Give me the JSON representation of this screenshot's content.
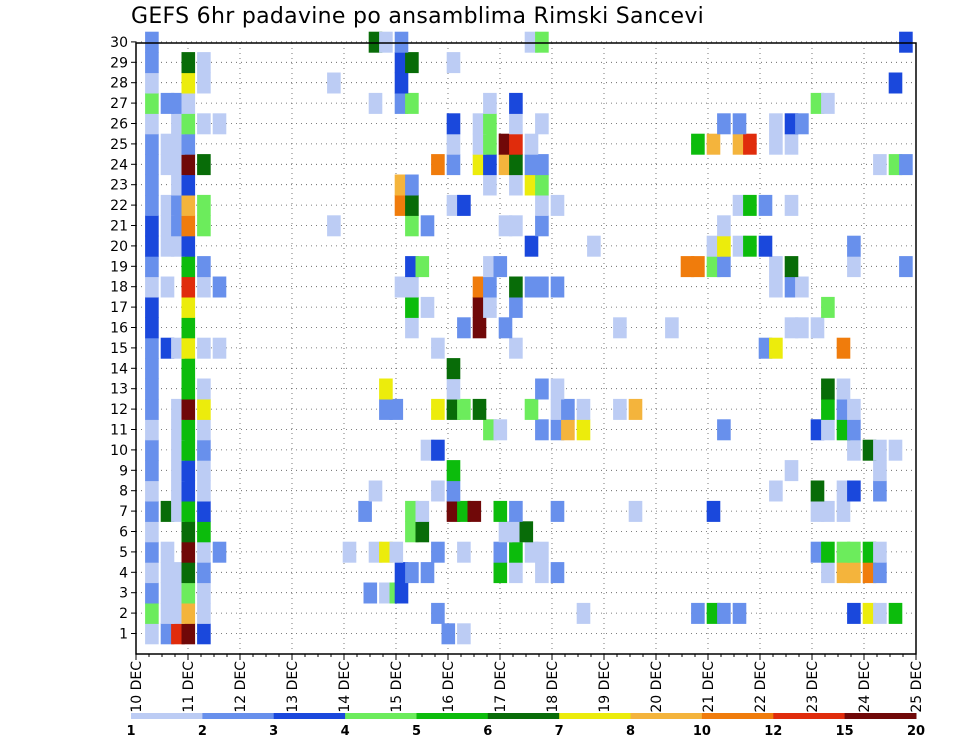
{
  "title": "GEFS 6hr padavine po ansamblima Rimski Sancevi",
  "chart_data": {
    "type": "heatmap",
    "title": "GEFS 6hr padavine po ansamblima Rimski Sancevi",
    "x_tick_labels": [
      "10 DEC",
      "11 DEC",
      "12 DEC",
      "13 DEC",
      "14 DEC",
      "15 DEC",
      "16 DEC",
      "17 DEC",
      "18 DEC",
      "19 DEC",
      "20 DEC",
      "21 DEC",
      "22 DEC",
      "23 DEC",
      "24 DEC",
      "25 DEC"
    ],
    "y_tick_labels": [
      "1",
      "2",
      "3",
      "4",
      "5",
      "6",
      "7",
      "8",
      "9",
      "10",
      "11",
      "12",
      "13",
      "14",
      "15",
      "16",
      "17",
      "18",
      "19",
      "20",
      "21",
      "22",
      "23",
      "24",
      "25",
      "26",
      "27",
      "28",
      "29",
      "30"
    ],
    "x_range": [
      "10 DEC 00Z",
      "25 DEC 00Z"
    ],
    "x_step_hours": 6,
    "y_range": [
      1,
      30
    ],
    "grid": "dotted",
    "colorbar": {
      "position": "bottom",
      "colors": [
        "#bcccf4",
        "#6890ec",
        "#1a48dc",
        "#6cec5c",
        "#0cbc0c",
        "#086c08",
        "#ecec0c",
        "#f4b43c",
        "#f07c0c",
        "#e02c0c",
        "#700808"
      ],
      "labels": [
        "1",
        "2",
        "3",
        "4",
        "5",
        "6",
        "7",
        "8",
        "10",
        "12",
        "15",
        "20"
      ]
    },
    "cells": {
      "1": [
        [
          0.3,
          0
        ],
        [
          0.6,
          1
        ],
        [
          0.8,
          9
        ],
        [
          1.0,
          10
        ],
        [
          1.3,
          2
        ],
        [
          6.0,
          1
        ],
        [
          6.3,
          0
        ]
      ],
      "2": [
        [
          0.3,
          3
        ],
        [
          0.6,
          0
        ],
        [
          0.8,
          0
        ],
        [
          1.0,
          7
        ],
        [
          1.3,
          0
        ],
        [
          5.8,
          1
        ],
        [
          8.6,
          0
        ],
        [
          10.8,
          1
        ],
        [
          11.1,
          4
        ],
        [
          11.3,
          1
        ],
        [
          11.6,
          1
        ],
        [
          13.8,
          2
        ],
        [
          14.1,
          6
        ],
        [
          14.3,
          0
        ],
        [
          14.6,
          4
        ]
      ],
      "3": [
        [
          0.3,
          1
        ],
        [
          0.6,
          0
        ],
        [
          0.8,
          0
        ],
        [
          1.0,
          3
        ],
        [
          1.3,
          0
        ],
        [
          4.5,
          1
        ],
        [
          4.8,
          0
        ],
        [
          5.0,
          3
        ],
        [
          5.1,
          2
        ]
      ],
      "4": [
        [
          0.3,
          0
        ],
        [
          0.6,
          0
        ],
        [
          0.8,
          0
        ],
        [
          1.0,
          5
        ],
        [
          1.3,
          1
        ],
        [
          5.1,
          2
        ],
        [
          5.3,
          1
        ],
        [
          5.6,
          1
        ],
        [
          7.0,
          4
        ],
        [
          7.3,
          0
        ],
        [
          7.8,
          0
        ],
        [
          8.1,
          1
        ],
        [
          13.3,
          0
        ],
        [
          13.6,
          7
        ],
        [
          13.8,
          7
        ],
        [
          14.1,
          8
        ],
        [
          14.3,
          1
        ]
      ],
      "5": [
        [
          0.3,
          1
        ],
        [
          0.6,
          0
        ],
        [
          1.0,
          10
        ],
        [
          1.3,
          0
        ],
        [
          1.6,
          1
        ],
        [
          4.1,
          0
        ],
        [
          4.6,
          0
        ],
        [
          4.8,
          6
        ],
        [
          5.0,
          0
        ],
        [
          5.8,
          1
        ],
        [
          6.3,
          0
        ],
        [
          7.0,
          1
        ],
        [
          7.3,
          4
        ],
        [
          7.6,
          0
        ],
        [
          7.8,
          0
        ],
        [
          13.1,
          1
        ],
        [
          13.3,
          4
        ],
        [
          13.6,
          3
        ],
        [
          13.8,
          3
        ],
        [
          14.1,
          4
        ],
        [
          14.3,
          0
        ]
      ],
      "6": [
        [
          0.3,
          0
        ],
        [
          1.0,
          5
        ],
        [
          1.3,
          4
        ],
        [
          5.3,
          3
        ],
        [
          5.5,
          5
        ],
        [
          7.1,
          0
        ],
        [
          7.3,
          0
        ],
        [
          7.5,
          5
        ]
      ],
      "7": [
        [
          0.3,
          1
        ],
        [
          0.6,
          5
        ],
        [
          0.8,
          0
        ],
        [
          1.0,
          4
        ],
        [
          1.3,
          2
        ],
        [
          4.4,
          1
        ],
        [
          5.3,
          3
        ],
        [
          5.5,
          0
        ],
        [
          6.1,
          10
        ],
        [
          6.3,
          4
        ],
        [
          6.5,
          10
        ],
        [
          7.0,
          4
        ],
        [
          7.3,
          1
        ],
        [
          8.1,
          1
        ],
        [
          9.6,
          0
        ],
        [
          11.1,
          2
        ],
        [
          13.1,
          0
        ],
        [
          13.3,
          0
        ],
        [
          13.6,
          0
        ]
      ],
      "8": [
        [
          0.3,
          0
        ],
        [
          0.8,
          0
        ],
        [
          1.0,
          2
        ],
        [
          1.3,
          0
        ],
        [
          4.6,
          0
        ],
        [
          5.8,
          0
        ],
        [
          6.1,
          1
        ],
        [
          12.3,
          0
        ],
        [
          13.1,
          5
        ],
        [
          13.6,
          0
        ],
        [
          13.8,
          2
        ],
        [
          14.3,
          1
        ]
      ],
      "9": [
        [
          0.3,
          1
        ],
        [
          0.8,
          0
        ],
        [
          1.0,
          2
        ],
        [
          1.3,
          0
        ],
        [
          6.1,
          4
        ],
        [
          12.6,
          0
        ],
        [
          14.3,
          0
        ]
      ],
      "10": [
        [
          0.3,
          1
        ],
        [
          0.8,
          0
        ],
        [
          1.0,
          4
        ],
        [
          1.3,
          1
        ],
        [
          5.6,
          0
        ],
        [
          5.8,
          2
        ],
        [
          13.8,
          0
        ],
        [
          14.1,
          5
        ],
        [
          14.3,
          0
        ],
        [
          14.6,
          0
        ]
      ],
      "11": [
        [
          0.3,
          0
        ],
        [
          0.8,
          0
        ],
        [
          1.0,
          4
        ],
        [
          1.3,
          0
        ],
        [
          6.8,
          3
        ],
        [
          7.0,
          0
        ],
        [
          7.8,
          1
        ],
        [
          8.1,
          1
        ],
        [
          8.3,
          7
        ],
        [
          8.6,
          6
        ],
        [
          11.3,
          1
        ],
        [
          13.1,
          2
        ],
        [
          13.3,
          0
        ],
        [
          13.6,
          4
        ],
        [
          13.8,
          1
        ]
      ],
      "12": [
        [
          0.3,
          1
        ],
        [
          0.8,
          0
        ],
        [
          1.0,
          10
        ],
        [
          1.3,
          6
        ],
        [
          4.8,
          1
        ],
        [
          5.0,
          1
        ],
        [
          5.8,
          6
        ],
        [
          6.1,
          5
        ],
        [
          6.3,
          3
        ],
        [
          6.6,
          5
        ],
        [
          7.6,
          3
        ],
        [
          8.1,
          0
        ],
        [
          8.3,
          1
        ],
        [
          8.6,
          0
        ],
        [
          9.3,
          0
        ],
        [
          9.6,
          7
        ],
        [
          13.3,
          4
        ],
        [
          13.6,
          1
        ],
        [
          13.8,
          0
        ]
      ],
      "13": [
        [
          0.3,
          1
        ],
        [
          1.0,
          4
        ],
        [
          1.3,
          0
        ],
        [
          4.8,
          6
        ],
        [
          6.1,
          0
        ],
        [
          7.8,
          1
        ],
        [
          8.1,
          0
        ],
        [
          13.3,
          5
        ],
        [
          13.6,
          0
        ]
      ],
      "14": [
        [
          0.3,
          1
        ],
        [
          1.0,
          4
        ],
        [
          6.1,
          5
        ]
      ],
      "15": [
        [
          0.3,
          1
        ],
        [
          0.6,
          2
        ],
        [
          0.8,
          0
        ],
        [
          1.0,
          6
        ],
        [
          1.3,
          0
        ],
        [
          1.6,
          0
        ],
        [
          5.8,
          0
        ],
        [
          7.3,
          0
        ],
        [
          12.1,
          1
        ],
        [
          12.3,
          6
        ],
        [
          13.6,
          8
        ]
      ],
      "16": [
        [
          0.3,
          2
        ],
        [
          1.0,
          4
        ],
        [
          5.3,
          0
        ],
        [
          6.3,
          1
        ],
        [
          6.6,
          10
        ],
        [
          7.1,
          1
        ],
        [
          9.3,
          0
        ],
        [
          10.3,
          0
        ],
        [
          12.6,
          0
        ],
        [
          12.8,
          0
        ],
        [
          13.1,
          0
        ]
      ],
      "17": [
        [
          0.3,
          2
        ],
        [
          1.0,
          6
        ],
        [
          5.3,
          4
        ],
        [
          5.6,
          0
        ],
        [
          6.6,
          10
        ],
        [
          6.8,
          0
        ],
        [
          7.3,
          1
        ],
        [
          13.3,
          3
        ]
      ],
      "18": [
        [
          0.3,
          0
        ],
        [
          0.6,
          0
        ],
        [
          1.0,
          9
        ],
        [
          1.3,
          0
        ],
        [
          1.6,
          1
        ],
        [
          5.1,
          0
        ],
        [
          5.3,
          0
        ],
        [
          6.6,
          8
        ],
        [
          6.8,
          1
        ],
        [
          7.3,
          5
        ],
        [
          7.6,
          1
        ],
        [
          7.8,
          1
        ],
        [
          8.1,
          1
        ],
        [
          12.3,
          0
        ],
        [
          12.6,
          1
        ],
        [
          12.8,
          0
        ]
      ],
      "19": [
        [
          0.3,
          1
        ],
        [
          1.0,
          4
        ],
        [
          1.3,
          1
        ],
        [
          5.3,
          2
        ],
        [
          5.5,
          3
        ],
        [
          6.8,
          0
        ],
        [
          7.0,
          1
        ],
        [
          10.6,
          8
        ],
        [
          10.8,
          8
        ],
        [
          11.1,
          3
        ],
        [
          11.3,
          1
        ],
        [
          12.3,
          0
        ],
        [
          12.6,
          5
        ],
        [
          13.8,
          0
        ],
        [
          14.8,
          1
        ]
      ],
      "20": [
        [
          0.3,
          2
        ],
        [
          0.6,
          0
        ],
        [
          0.8,
          0
        ],
        [
          1.0,
          2
        ],
        [
          7.6,
          2
        ],
        [
          8.8,
          0
        ],
        [
          11.1,
          0
        ],
        [
          11.3,
          6
        ],
        [
          11.6,
          0
        ],
        [
          11.8,
          4
        ],
        [
          12.1,
          2
        ],
        [
          13.8,
          1
        ]
      ],
      "21": [
        [
          0.3,
          2
        ],
        [
          0.6,
          0
        ],
        [
          0.8,
          1
        ],
        [
          1.0,
          8
        ],
        [
          1.3,
          3
        ],
        [
          3.8,
          0
        ],
        [
          5.3,
          3
        ],
        [
          5.6,
          1
        ],
        [
          7.1,
          0
        ],
        [
          7.3,
          0
        ],
        [
          7.8,
          1
        ],
        [
          11.3,
          0
        ]
      ],
      "22": [
        [
          0.3,
          1
        ],
        [
          0.6,
          0
        ],
        [
          0.8,
          1
        ],
        [
          1.0,
          7
        ],
        [
          1.3,
          3
        ],
        [
          5.1,
          8
        ],
        [
          5.3,
          5
        ],
        [
          6.1,
          0
        ],
        [
          6.3,
          2
        ],
        [
          7.8,
          0
        ],
        [
          8.1,
          0
        ],
        [
          11.6,
          0
        ],
        [
          11.8,
          4
        ],
        [
          12.1,
          1
        ],
        [
          12.6,
          0
        ]
      ],
      "23": [
        [
          0.3,
          1
        ],
        [
          0.8,
          0
        ],
        [
          1.0,
          2
        ],
        [
          5.1,
          7
        ],
        [
          5.3,
          1
        ],
        [
          6.8,
          0
        ],
        [
          7.3,
          0
        ],
        [
          7.6,
          6
        ],
        [
          7.8,
          3
        ]
      ],
      "24": [
        [
          0.3,
          1
        ],
        [
          0.6,
          0
        ],
        [
          0.8,
          0
        ],
        [
          1.0,
          10
        ],
        [
          1.3,
          5
        ],
        [
          5.8,
          8
        ],
        [
          6.1,
          1
        ],
        [
          6.6,
          6
        ],
        [
          6.8,
          2
        ],
        [
          7.1,
          7
        ],
        [
          7.3,
          5
        ],
        [
          7.6,
          1
        ],
        [
          7.8,
          1
        ],
        [
          14.3,
          0
        ],
        [
          14.6,
          3
        ],
        [
          14.8,
          1
        ]
      ],
      "25": [
        [
          0.3,
          1
        ],
        [
          0.6,
          0
        ],
        [
          0.8,
          0
        ],
        [
          1.0,
          1
        ],
        [
          6.1,
          0
        ],
        [
          6.6,
          0
        ],
        [
          6.8,
          3
        ],
        [
          7.1,
          10
        ],
        [
          7.3,
          9
        ],
        [
          7.6,
          0
        ],
        [
          10.8,
          4
        ],
        [
          11.1,
          7
        ],
        [
          11.6,
          7
        ],
        [
          11.8,
          9
        ],
        [
          12.3,
          0
        ],
        [
          12.6,
          0
        ]
      ],
      "26": [
        [
          0.3,
          0
        ],
        [
          0.8,
          0
        ],
        [
          1.0,
          3
        ],
        [
          1.3,
          0
        ],
        [
          1.6,
          0
        ],
        [
          6.1,
          2
        ],
        [
          6.6,
          0
        ],
        [
          6.8,
          3
        ],
        [
          7.3,
          0
        ],
        [
          7.8,
          0
        ],
        [
          11.3,
          1
        ],
        [
          11.6,
          1
        ],
        [
          12.3,
          0
        ],
        [
          12.6,
          2
        ],
        [
          12.8,
          1
        ]
      ],
      "27": [
        [
          0.3,
          3
        ],
        [
          0.6,
          1
        ],
        [
          0.8,
          1
        ],
        [
          1.0,
          0
        ],
        [
          4.6,
          0
        ],
        [
          5.1,
          1
        ],
        [
          5.3,
          3
        ],
        [
          6.8,
          0
        ],
        [
          7.3,
          2
        ],
        [
          13.1,
          3
        ],
        [
          13.3,
          0
        ]
      ],
      "28": [
        [
          0.3,
          0
        ],
        [
          1.0,
          6
        ],
        [
          1.3,
          0
        ],
        [
          3.8,
          0
        ],
        [
          5.1,
          2
        ],
        [
          14.6,
          2
        ]
      ],
      "29": [
        [
          0.3,
          1
        ],
        [
          1.0,
          5
        ],
        [
          1.3,
          0
        ],
        [
          5.1,
          2
        ],
        [
          5.3,
          5
        ],
        [
          6.1,
          0
        ]
      ],
      "30": [
        [
          0.3,
          1
        ],
        [
          4.6,
          5
        ],
        [
          4.8,
          0
        ],
        [
          5.1,
          1
        ],
        [
          7.6,
          0
        ],
        [
          7.8,
          3
        ],
        [
          14.8,
          2
        ]
      ]
    }
  }
}
